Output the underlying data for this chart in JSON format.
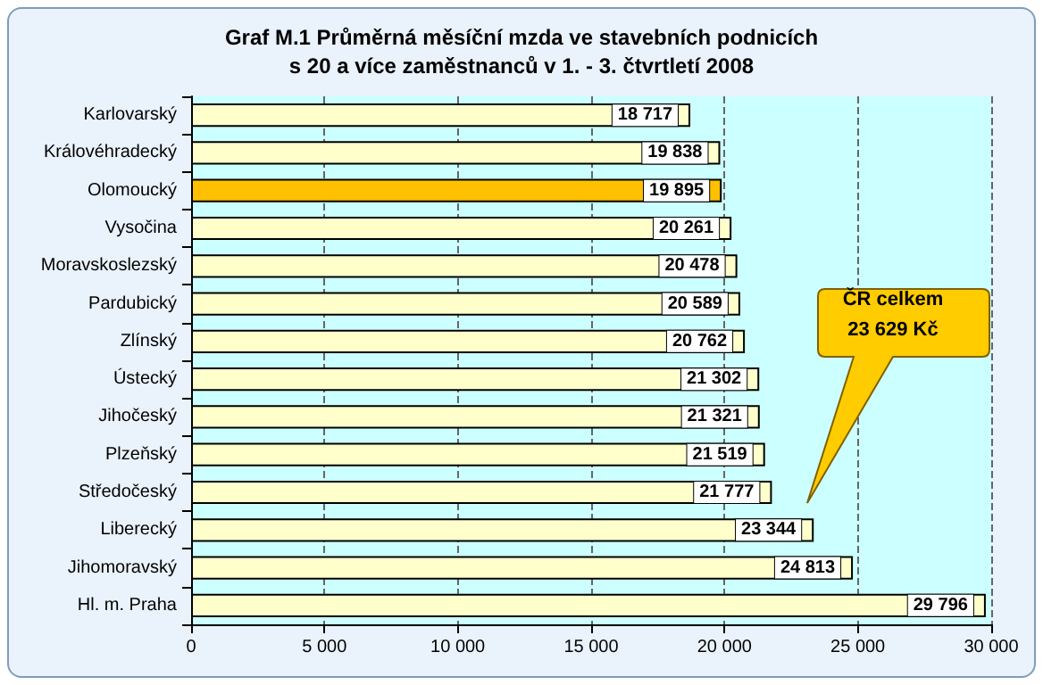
{
  "chart_data": {
    "type": "bar",
    "orientation": "horizontal",
    "title": "Graf M.1 Průměrná měsíční mzda ve stavebních podnicích\ns 20 a více zaměstnanců v 1. - 3. čtvrtletí 2008",
    "categories": [
      "Karlovarský",
      "Královéhradecký",
      "Olomoucký",
      "Vysočina",
      "Moravskoslezský",
      "Pardubický",
      "Zlínský",
      "Ústecký",
      "Jihočeský",
      "Plzeňský",
      "Středočeský",
      "Liberecký",
      "Jihomoravský",
      "Hl. m. Praha"
    ],
    "values": [
      18717,
      19838,
      19895,
      20261,
      20478,
      20589,
      20762,
      21302,
      21321,
      21519,
      21777,
      23344,
      24813,
      29796
    ],
    "colors": [
      "#ffffcc",
      "#ffffcc",
      "#ffc000",
      "#ffffcc",
      "#ffffcc",
      "#ffffcc",
      "#ffffcc",
      "#ffffcc",
      "#ffffcc",
      "#ffffcc",
      "#ffffcc",
      "#ffffcc",
      "#ffffcc",
      "#ffffcc"
    ],
    "xlim": [
      0,
      30000
    ],
    "xticks": [
      {
        "value": 0,
        "label": "0"
      },
      {
        "value": 5000,
        "label": "5 000"
      },
      {
        "value": 10000,
        "label": "10 000"
      },
      {
        "value": 15000,
        "label": "15 000"
      },
      {
        "value": 20000,
        "label": "20 000"
      },
      {
        "value": 25000,
        "label": "25 000"
      },
      {
        "value": 30000,
        "label": "30 000"
      }
    ],
    "grid": "x",
    "data_labels": true,
    "annotations": [
      "ČR celkem\n23 629 Kč"
    ]
  }
}
